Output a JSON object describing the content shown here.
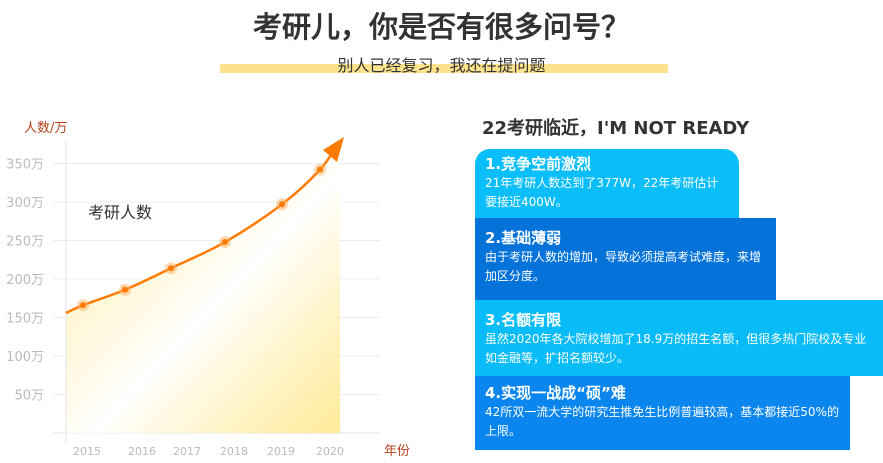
{
  "header": {
    "title": "考研儿，你是否有很多问号？",
    "subtitle": "别人已经复习，我还在提问题"
  },
  "chart_data": {
    "type": "line",
    "title": "考研人数",
    "ylabel": "人数/万",
    "xlabel": "年份",
    "categories": [
      "2015",
      "2016",
      "2017",
      "2018",
      "2019",
      "2020"
    ],
    "values": [
      166,
      186,
      214,
      248,
      297,
      342
    ],
    "yticks": [
      "50万",
      "100万",
      "150万",
      "200万",
      "250万",
      "300万",
      "350万"
    ],
    "ylim": [
      0,
      350
    ],
    "grid": true,
    "colors": {
      "line": "#FF7A00",
      "fill": "#FFE680",
      "axis_label": "#B5421C"
    }
  },
  "right": {
    "heading": "22考研临近，I'M NOT READY",
    "items": [
      {
        "title": "1.竞争空前激烈",
        "text": "21年考研人数达到了377W，22年考研估计要接近400W。"
      },
      {
        "title": "2.基础薄弱",
        "text": "由于考研人数的增加，导致必须提高考试难度，来增加区分度。"
      },
      {
        "title": "3.名额有限",
        "text": "虽然2020年各大院校增加了18.9万的招生名额，但很多热门院校及专业如金融等，扩招名额较少。"
      },
      {
        "title": "4.实现一战成“硕”难",
        "text": "42所双一流大学的研究生推免生比例普遍较高，基本都接近50%的上限。"
      }
    ]
  }
}
